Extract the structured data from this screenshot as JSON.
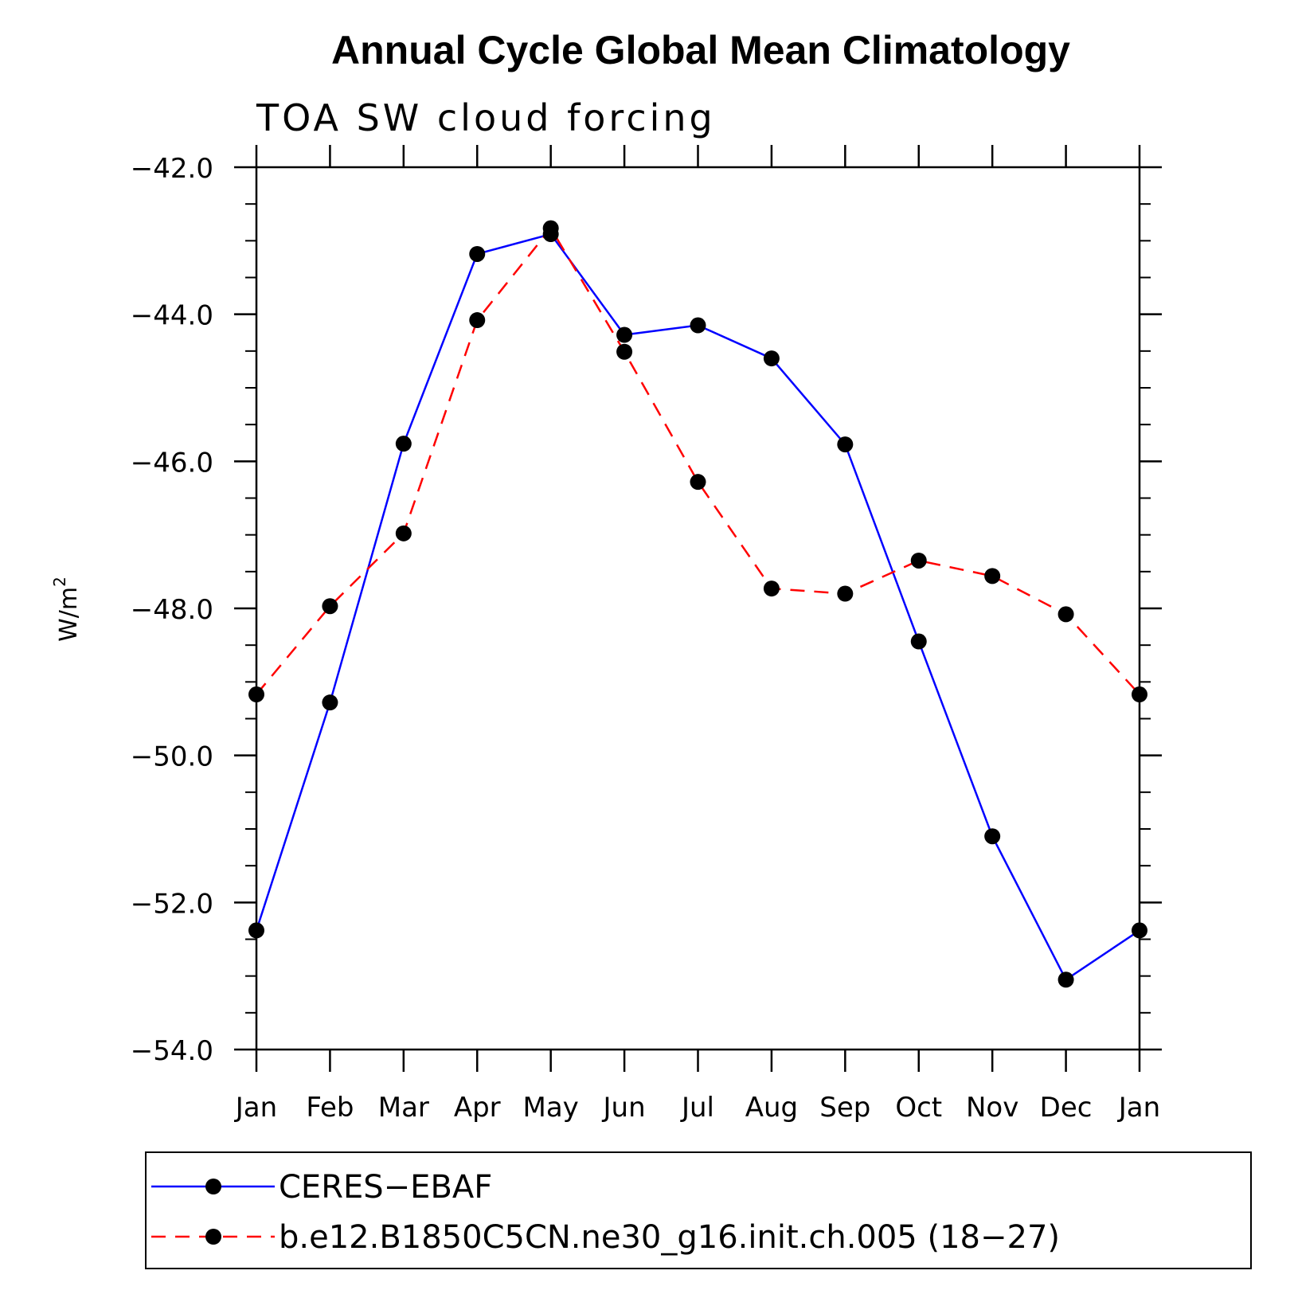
{
  "chart_data": {
    "type": "line",
    "title": "Annual Cycle Global Mean Climatology",
    "subtitle": "TOA SW cloud forcing",
    "ylabel": "W/m",
    "ylabel_superscript": "2",
    "xlabel": "",
    "categories": [
      "Jan",
      "Feb",
      "Mar",
      "Apr",
      "May",
      "Jun",
      "Jul",
      "Aug",
      "Sep",
      "Oct",
      "Nov",
      "Dec",
      "Jan"
    ],
    "ylim": [
      -54.0,
      -42.0
    ],
    "yticks": [
      -42.0,
      -44.0,
      -46.0,
      -48.0,
      -50.0,
      -52.0,
      -54.0
    ],
    "ytick_labels": [
      "−42.0",
      "−44.0",
      "−46.0",
      "−48.0",
      "−50.0",
      "−52.0",
      "−54.0"
    ],
    "grid": false,
    "legend_position": "bottom",
    "series": [
      {
        "name": "CERES−EBAF",
        "color": "#0000ff",
        "dash": "solid",
        "marker": "filled-circle",
        "values": [
          -52.38,
          -49.28,
          -45.76,
          -43.18,
          -42.91,
          -44.28,
          -44.15,
          -44.6,
          -45.77,
          -48.45,
          -51.1,
          -53.05,
          -52.38
        ]
      },
      {
        "name": "b.e12.B1850C5CN.ne30_g16.init.ch.005 (18−27)",
        "color": "#ff0000",
        "dash": "dashed",
        "marker": "filled-circle",
        "values": [
          -49.17,
          -47.97,
          -46.98,
          -44.08,
          -42.83,
          -44.51,
          -46.28,
          -47.73,
          -47.8,
          -47.35,
          -47.56,
          -48.08,
          -49.17
        ]
      }
    ]
  }
}
